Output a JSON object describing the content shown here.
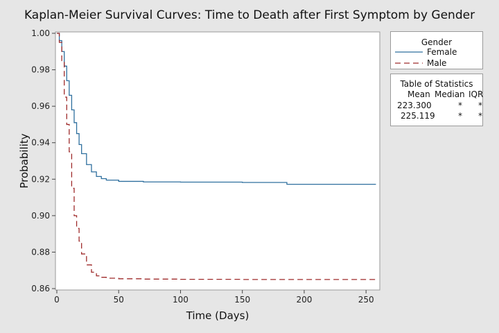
{
  "chart_data": {
    "type": "line",
    "title": "Kaplan-Meier Survival Curves: Time to Death after First Symptom by Gender",
    "xlabel": "Time (Days)",
    "ylabel": "Probability",
    "xlim": [
      0,
      260
    ],
    "ylim": [
      0.86,
      1.0
    ],
    "x_ticks": [
      "0",
      "50",
      "100",
      "150",
      "200",
      "250"
    ],
    "y_ticks": [
      "0.86",
      "0.88",
      "0.90",
      "0.92",
      "0.94",
      "0.96",
      "0.98",
      "1.00"
    ],
    "grid": false,
    "legend_position": "right",
    "legend_title": "Gender",
    "series": [
      {
        "name": "Female",
        "color": "#2e6f9e",
        "style": "solid",
        "points": [
          [
            0,
            1.0
          ],
          [
            2,
            0.996
          ],
          [
            4,
            0.99
          ],
          [
            6,
            0.982
          ],
          [
            8,
            0.974
          ],
          [
            10,
            0.966
          ],
          [
            12,
            0.958
          ],
          [
            14,
            0.951
          ],
          [
            16,
            0.945
          ],
          [
            18,
            0.939
          ],
          [
            20,
            0.934
          ],
          [
            24,
            0.928
          ],
          [
            28,
            0.924
          ],
          [
            32,
            0.9215
          ],
          [
            36,
            0.9203
          ],
          [
            40,
            0.9195
          ],
          [
            50,
            0.9188
          ],
          [
            70,
            0.9185
          ],
          [
            100,
            0.9184
          ],
          [
            150,
            0.9182
          ],
          [
            186,
            0.9182
          ],
          [
            186,
            0.9172
          ],
          [
            258,
            0.9172
          ]
        ]
      },
      {
        "name": "Male",
        "color": "#9e2a2a",
        "style": "dashed",
        "points": [
          [
            0,
            1.0
          ],
          [
            2,
            0.995
          ],
          [
            4,
            0.985
          ],
          [
            6,
            0.965
          ],
          [
            8,
            0.95
          ],
          [
            10,
            0.935
          ],
          [
            12,
            0.915
          ],
          [
            14,
            0.9
          ],
          [
            16,
            0.893
          ],
          [
            18,
            0.886
          ],
          [
            20,
            0.879
          ],
          [
            24,
            0.873
          ],
          [
            28,
            0.869
          ],
          [
            32,
            0.867
          ],
          [
            36,
            0.8662
          ],
          [
            40,
            0.8657
          ],
          [
            50,
            0.8654
          ],
          [
            70,
            0.8652
          ],
          [
            100,
            0.8651
          ],
          [
            150,
            0.865
          ],
          [
            258,
            0.865
          ]
        ]
      }
    ],
    "statistics_table": {
      "title": "Table of Statistics",
      "headers": [
        "Mean",
        "Median",
        "IQR"
      ],
      "rows": [
        [
          "223.300",
          "*",
          "*"
        ],
        [
          "225.119",
          "*",
          "*"
        ]
      ]
    }
  }
}
